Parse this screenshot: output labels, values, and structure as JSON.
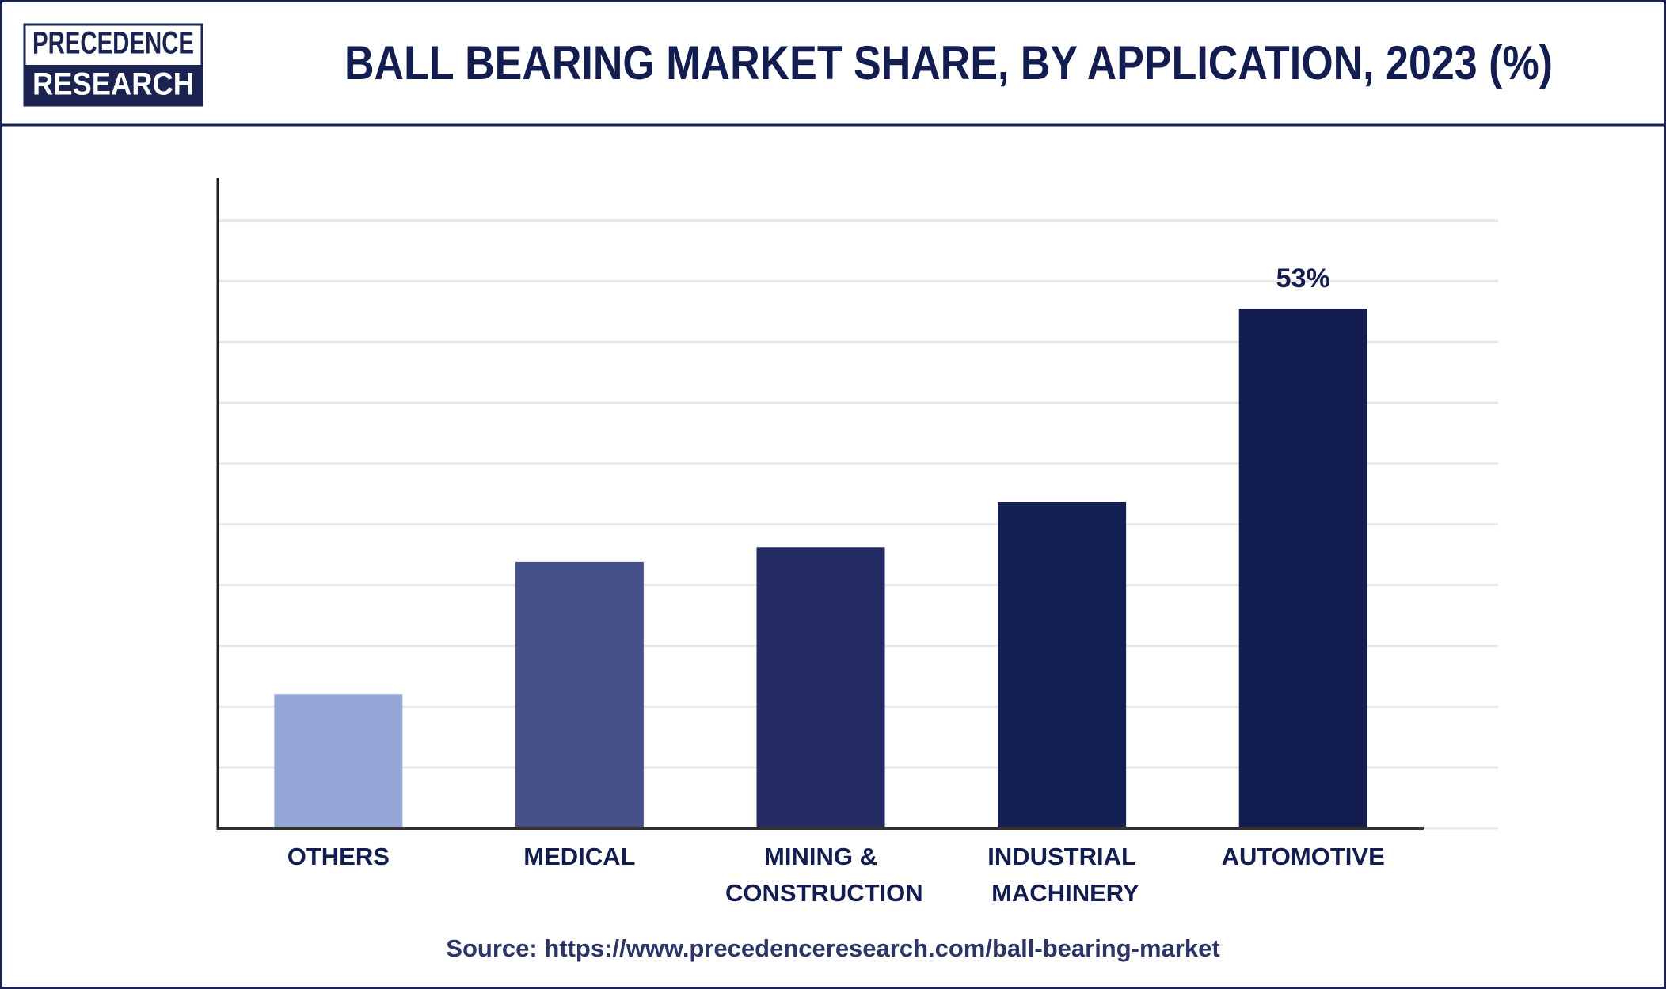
{
  "logo": {
    "top": "PRECEDENCE",
    "bottom": "RESEARCH"
  },
  "chart_data": {
    "type": "bar",
    "title": "BALL BEARING MARKET SHARE, BY APPLICATION, 2023 (%)",
    "categories": [
      "OTHERS",
      "MEDICAL",
      "MINING & CONSTRUCTION",
      "INDUSTRIAL MACHINERY",
      "AUTOMOTIVE"
    ],
    "values": [
      13.7,
      27.2,
      28.7,
      33.3,
      53
    ],
    "value_labels": [
      null,
      null,
      null,
      null,
      "53%"
    ],
    "colors": [
      "#95a5d6",
      "#475189",
      "#252c63",
      "#141f52",
      "#131d4f"
    ],
    "ylim": [
      0,
      66
    ],
    "yticks": [
      0,
      6.2,
      12.4,
      18.6,
      24.8,
      31,
      37.2,
      43.4,
      49.6,
      55.8,
      62
    ],
    "grid": true,
    "source": "Source: https://www.precedenceresearch.com/ball-bearing-market"
  }
}
